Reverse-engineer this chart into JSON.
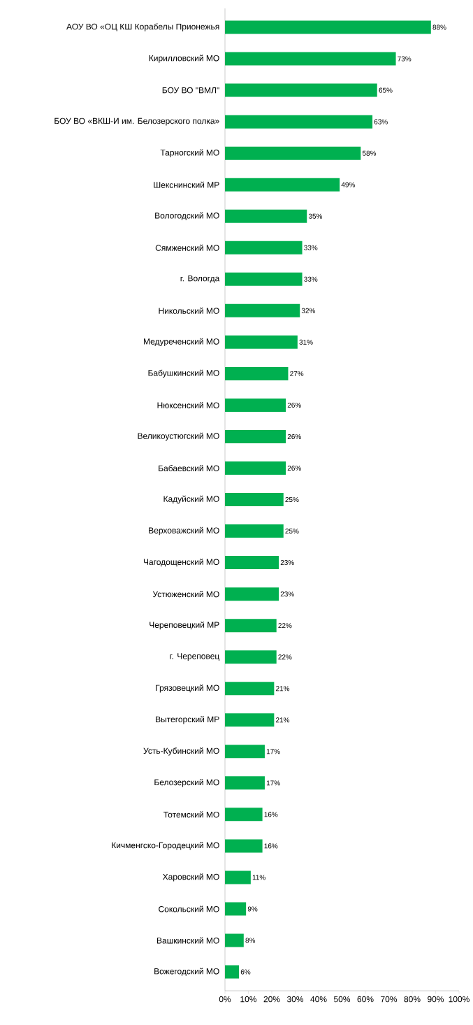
{
  "chart_data": {
    "type": "bar",
    "orientation": "horizontal",
    "color": "#00b050",
    "categories": [
      "АОУ ВО «ОЦ КШ Корабелы Прионежья",
      "Кирилловский МО",
      "БОУ ВО \"ВМЛ\"",
      "БОУ ВО «ВКШ-И им. Белозерского полка»",
      "Тарногский МО",
      "Шекснинский МР",
      "Вологодский МО",
      "Сямженский МО",
      "г. Вологда",
      "Никольский МО",
      "Медуреченский МО",
      "Бабушкинский МО",
      "Нюксенский МО",
      "Великоустюгский МО",
      "Бабаевский МО",
      "Кадуйский МО",
      "Верховажский МО",
      "Чагодощенский МО",
      "Устюженский МО",
      "Череповецкий МР",
      "г. Череповец",
      "Грязовецкий МО",
      "Вытегорский МР",
      "Усть-Кубинский МО",
      "Белозерский МО",
      "Тотемский МО",
      "Кичменгско-Городецкий МО",
      "Харовский МО",
      "Сокольский МО",
      "Вашкинский МО",
      "Вожегодский МО"
    ],
    "values": [
      88,
      73,
      65,
      63,
      58,
      49,
      35,
      33,
      33,
      32,
      31,
      27,
      26,
      26,
      26,
      25,
      25,
      23,
      23,
      22,
      22,
      21,
      21,
      17,
      17,
      16,
      16,
      11,
      9,
      8,
      6
    ],
    "value_labels": [
      "88%",
      "73%",
      "65%",
      "63%",
      "58%",
      "49%",
      "35%",
      "33%",
      "33%",
      "32%",
      "31%",
      "27%",
      "26%",
      "26%",
      "26%",
      "25%",
      "25%",
      "23%",
      "23%",
      "22%",
      "22%",
      "21%",
      "21%",
      "17%",
      "17%",
      "16%",
      "16%",
      "11%",
      "9%",
      "8%",
      "6%"
    ],
    "xlim": [
      0,
      100
    ],
    "xticks": [
      {
        "value": 0,
        "label": "0%"
      },
      {
        "value": 10,
        "label": "10%"
      },
      {
        "value": 20,
        "label": "20%"
      },
      {
        "value": 30,
        "label": "30%"
      },
      {
        "value": 40,
        "label": "40%"
      },
      {
        "value": 50,
        "label": "50%"
      },
      {
        "value": 60,
        "label": "60%"
      },
      {
        "value": 70,
        "label": "70%"
      },
      {
        "value": 80,
        "label": "80%"
      },
      {
        "value": 90,
        "label": "90%"
      },
      {
        "value": 100,
        "label": "100%"
      }
    ]
  }
}
